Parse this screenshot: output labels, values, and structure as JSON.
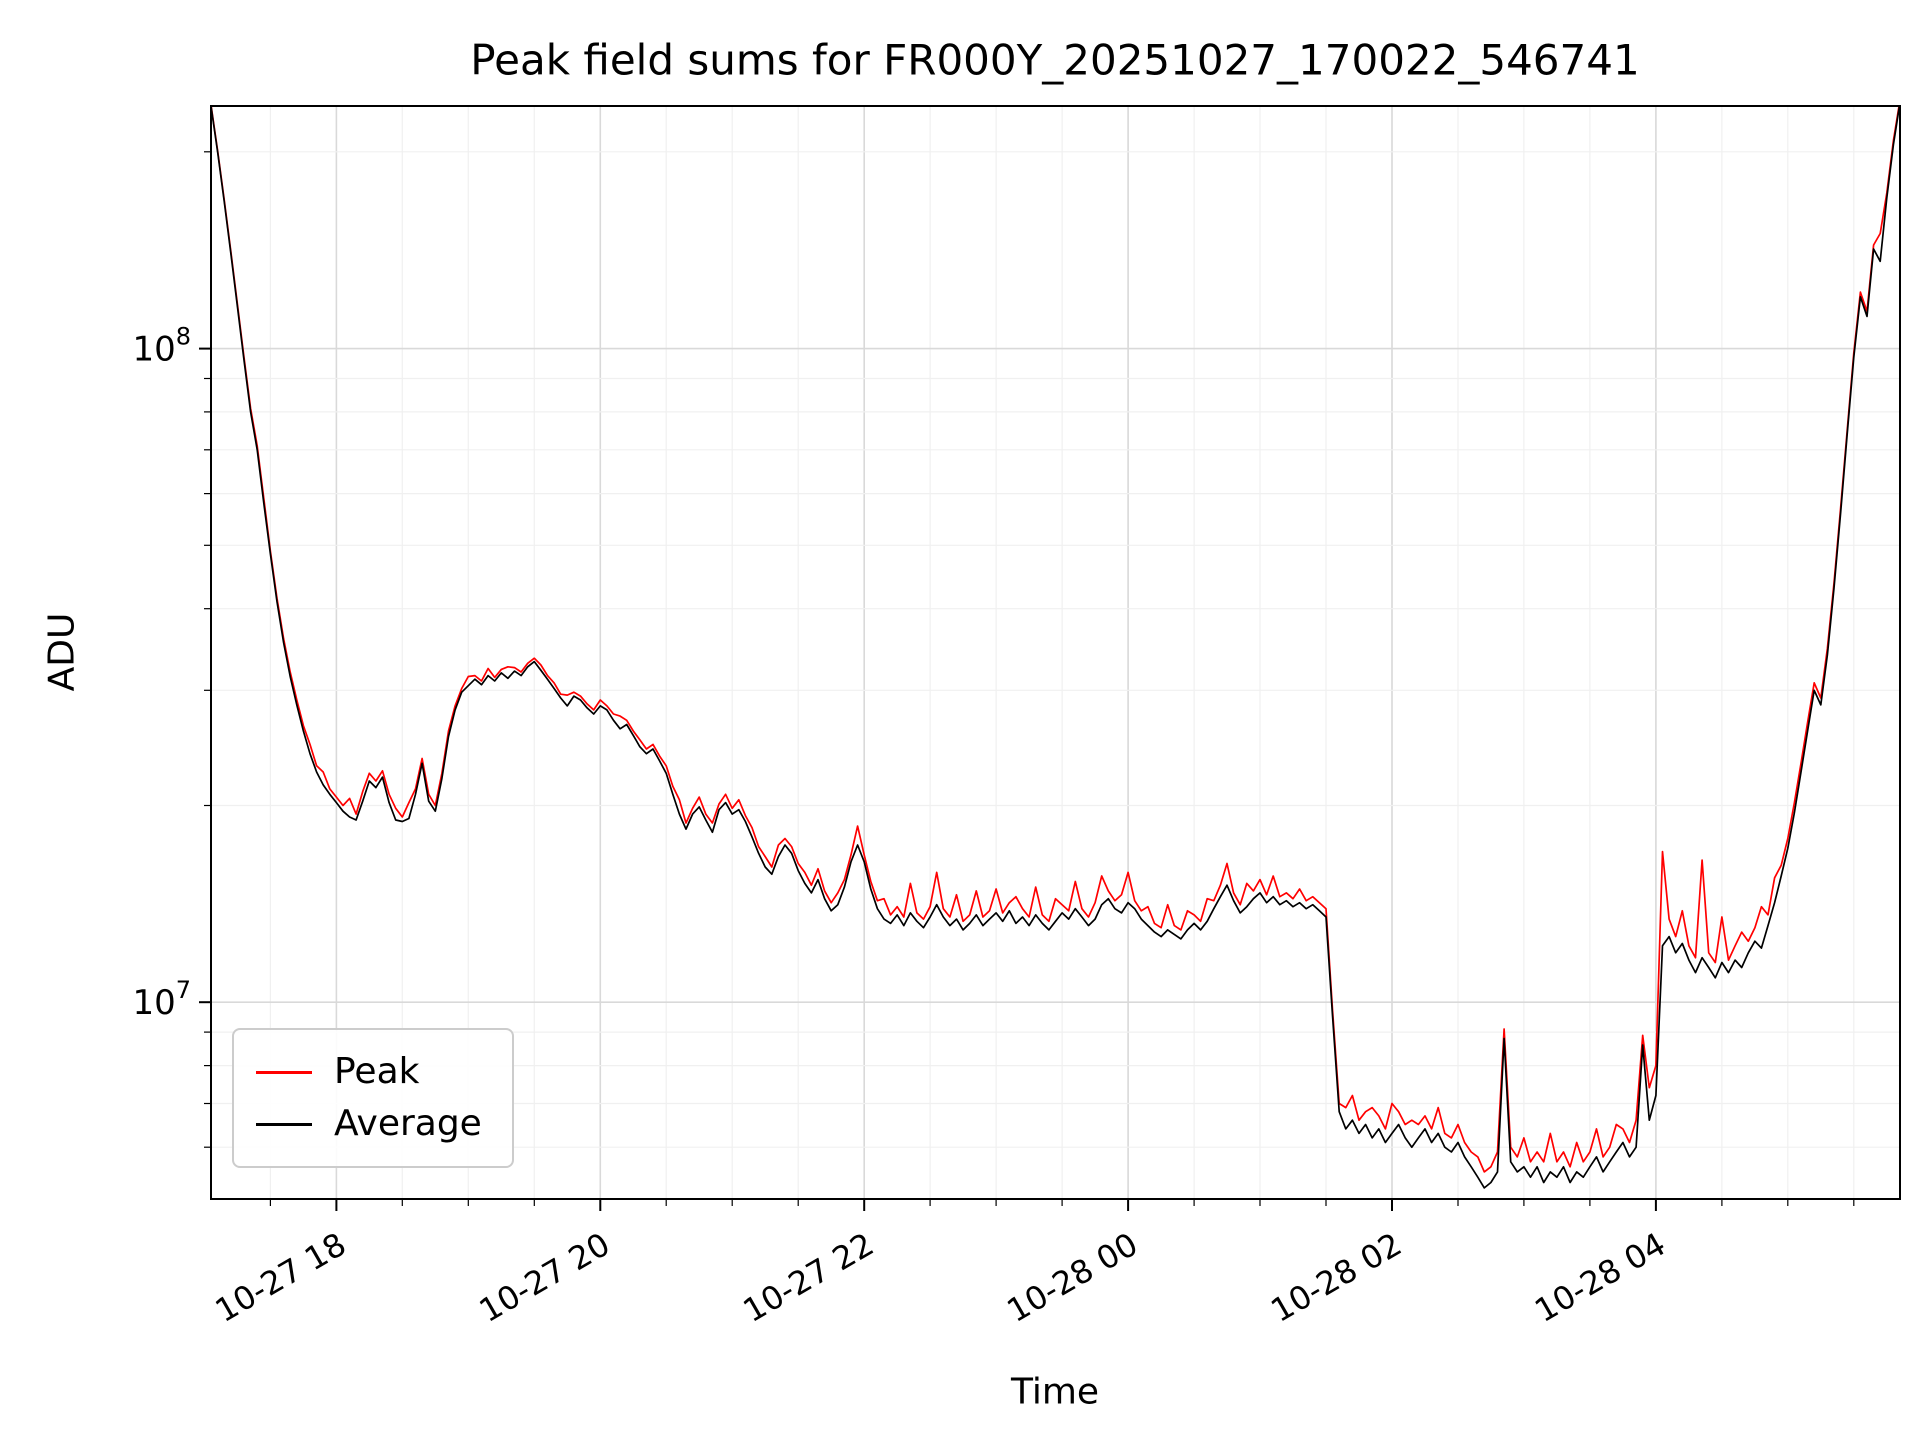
{
  "chart_data": {
    "type": "line",
    "title": "Peak field sums for FR000Y_20251027_170022_546741",
    "xlabel": "Time",
    "ylabel": "ADU",
    "yscale": "log",
    "grid": true,
    "legend_loc": "lower left",
    "ylim": [
      5000000,
      235000000
    ],
    "xlim": [
      0.05,
      12.85
    ],
    "x_axis_origin": "10-27 17:00",
    "x_unit": "hours since 10-27 17:00",
    "x_start": 0.05,
    "x_step": 0.05,
    "value_scale": 1000000,
    "value_unit": "ADU (values stored in millions)",
    "x_ticks": [
      {
        "t": 1,
        "label": "10-27 18"
      },
      {
        "t": 3,
        "label": "10-27 20"
      },
      {
        "t": 5,
        "label": "10-27 22"
      },
      {
        "t": 7,
        "label": "10-28 00"
      },
      {
        "t": 9,
        "label": "10-28 02"
      },
      {
        "t": 11,
        "label": "10-28 04"
      }
    ],
    "y_ticks": [
      {
        "value": 10000000,
        "exp": 7,
        "label": "10^7"
      },
      {
        "value": 100000000,
        "exp": 8,
        "label": "10^8"
      }
    ],
    "series": [
      {
        "name": "Peak",
        "color": "#ff0000",
        "values": [
          236,
          201,
          169,
          141,
          117,
          97,
          81,
          71,
          59,
          49,
          41.5,
          36,
          32,
          29,
          26.5,
          24.8,
          23,
          22.5,
          21.2,
          20.6,
          20,
          20.5,
          19.4,
          21,
          22.4,
          21.8,
          22.6,
          20.8,
          19.8,
          19.2,
          20.2,
          21.2,
          23.6,
          20.8,
          20,
          22.4,
          26,
          28.4,
          30.2,
          31.5,
          31.6,
          31,
          32.4,
          31.4,
          32.3,
          32.6,
          32.5,
          32,
          33,
          33.6,
          32.8,
          31.6,
          30.8,
          29.6,
          29.5,
          29.8,
          29.4,
          28.6,
          28,
          29,
          28.4,
          27.6,
          27.4,
          27,
          26,
          25.2,
          24.4,
          24.8,
          23.8,
          23,
          21.4,
          20.4,
          18.8,
          19.8,
          20.6,
          19.4,
          18.8,
          20.1,
          20.8,
          19.8,
          20.4,
          19.3,
          18.5,
          17.3,
          16.7,
          16.1,
          17.4,
          17.8,
          17.3,
          16.3,
          15.8,
          15.1,
          16,
          14.8,
          14.2,
          14.7,
          15.4,
          16.8,
          18.6,
          16.8,
          15.3,
          14.3,
          14.4,
          13.6,
          14,
          13.5,
          15.2,
          13.7,
          13.4,
          14,
          15.8,
          13.9,
          13.5,
          14.6,
          13.3,
          13.6,
          14.8,
          13.5,
          13.8,
          14.9,
          13.7,
          14.2,
          14.5,
          13.9,
          13.5,
          15,
          13.6,
          13.3,
          14.4,
          14.1,
          13.8,
          15.3,
          13.9,
          13.5,
          14.2,
          15.6,
          14.8,
          14.3,
          14.6,
          15.8,
          14.3,
          13.8,
          14,
          13.2,
          13,
          14.1,
          13.1,
          12.9,
          13.8,
          13.6,
          13.3,
          14.4,
          14.3,
          15.1,
          16.3,
          14.7,
          14.1,
          15.2,
          14.8,
          15.4,
          14.6,
          15.6,
          14.5,
          14.7,
          14.4,
          14.9,
          14.3,
          14.5,
          14.2,
          13.9,
          9.7,
          7,
          6.9,
          7.2,
          6.6,
          6.8,
          6.9,
          6.7,
          6.4,
          7,
          6.8,
          6.5,
          6.6,
          6.5,
          6.7,
          6.4,
          6.9,
          6.3,
          6.2,
          6.5,
          6.1,
          5.9,
          5.8,
          5.5,
          5.6,
          5.9,
          9.1,
          6,
          5.8,
          6.2,
          5.7,
          5.9,
          5.7,
          6.3,
          5.7,
          5.9,
          5.6,
          6.1,
          5.7,
          5.9,
          6.4,
          5.8,
          6,
          6.5,
          6.4,
          6.1,
          6.6,
          8.9,
          7.4,
          8,
          17,
          13.4,
          12.6,
          13.8,
          12.2,
          11.7,
          16.5,
          11.9,
          11.5,
          13.5,
          11.6,
          12.2,
          12.8,
          12.4,
          13,
          14,
          13.6,
          15.5,
          16.2,
          17.8,
          20.2,
          23.2,
          26.8,
          30.8,
          29.2,
          34.8,
          43.8,
          57,
          75,
          98.5,
          122,
          114,
          144,
          150,
          173,
          208,
          240
        ]
      },
      {
        "name": "Average",
        "color": "#000000",
        "values": [
          235,
          200,
          168,
          140,
          116,
          96,
          80,
          70,
          58,
          48.5,
          41,
          35.5,
          31.5,
          28.5,
          26,
          24,
          22.5,
          21.5,
          20.8,
          20.2,
          19.6,
          19.2,
          19,
          20.3,
          21.8,
          21.3,
          22.1,
          20.2,
          19,
          18.9,
          19.1,
          20.8,
          23.2,
          20.3,
          19.6,
          22,
          25.5,
          28,
          29.8,
          30.5,
          31.2,
          30.6,
          31.6,
          31,
          31.9,
          31.3,
          32.1,
          31.6,
          32.6,
          33.2,
          32.2,
          31.2,
          30.2,
          29.2,
          28.4,
          29.4,
          29,
          28.2,
          27.6,
          28.4,
          28,
          27,
          26.2,
          26.6,
          25.6,
          24.6,
          24,
          24.4,
          23.4,
          22.4,
          20.8,
          19.4,
          18.4,
          19.4,
          19.9,
          19,
          18.2,
          19.7,
          20.2,
          19.4,
          19.7,
          18.9,
          17.9,
          16.9,
          16.1,
          15.7,
          16.7,
          17.4,
          16.9,
          15.9,
          15.2,
          14.7,
          15.4,
          14.4,
          13.8,
          14.1,
          15,
          16.4,
          17.4,
          16.4,
          14.9,
          13.9,
          13.4,
          13.2,
          13.6,
          13.1,
          13.7,
          13.3,
          13,
          13.5,
          14.1,
          13.5,
          13.1,
          13.4,
          12.9,
          13.2,
          13.6,
          13.1,
          13.4,
          13.7,
          13.3,
          13.8,
          13.2,
          13.5,
          13.1,
          13.6,
          13.2,
          12.9,
          13.3,
          13.7,
          13.4,
          13.9,
          13.5,
          13.1,
          13.4,
          14.1,
          14.4,
          13.9,
          13.7,
          14.2,
          13.9,
          13.4,
          13.1,
          12.8,
          12.6,
          12.9,
          12.7,
          12.5,
          12.9,
          13.2,
          12.9,
          13.3,
          13.9,
          14.5,
          15.1,
          14.3,
          13.7,
          14,
          14.4,
          14.7,
          14.2,
          14.5,
          14.1,
          14.3,
          14,
          14.2,
          13.9,
          14.1,
          13.8,
          13.5,
          9.5,
          6.8,
          6.4,
          6.6,
          6.3,
          6.5,
          6.2,
          6.4,
          6.1,
          6.3,
          6.5,
          6.2,
          6,
          6.2,
          6.4,
          6.1,
          6.3,
          6,
          5.9,
          6.1,
          5.8,
          5.6,
          5.4,
          5.2,
          5.3,
          5.5,
          8.8,
          5.7,
          5.5,
          5.6,
          5.4,
          5.6,
          5.3,
          5.5,
          5.4,
          5.6,
          5.3,
          5.5,
          5.4,
          5.6,
          5.8,
          5.5,
          5.7,
          5.9,
          6.1,
          5.8,
          6,
          8.6,
          6.6,
          7.2,
          12.2,
          12.6,
          11.9,
          12.3,
          11.6,
          11.1,
          11.7,
          11.3,
          10.9,
          11.5,
          11.1,
          11.6,
          11.3,
          11.9,
          12.4,
          12.1,
          13.1,
          14.2,
          15.6,
          17.2,
          19.5,
          22.5,
          26,
          30,
          28.5,
          34,
          43,
          56,
          74,
          97,
          120,
          112,
          142,
          136,
          170,
          205,
          238
        ]
      }
    ]
  },
  "legend": {
    "items": [
      {
        "label": "Peak",
        "color": "#ff0000"
      },
      {
        "label": "Average",
        "color": "#000000"
      }
    ]
  }
}
